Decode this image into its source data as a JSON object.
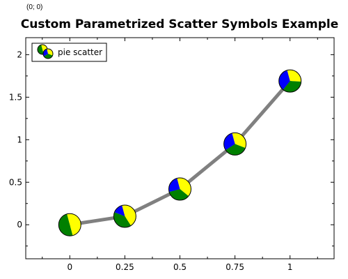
{
  "header": {
    "coordinate_readout": "(0; 0)"
  },
  "colors": {
    "line": "#808080",
    "pie": [
      "#ffff00",
      "#008000",
      "#0000ff"
    ],
    "axis": "#000000",
    "background": "#ffffff"
  },
  "chart_data": {
    "type": "scatter",
    "title": "Custom Parametrized Scatter Symbols Example",
    "xlabel": "",
    "ylabel": "",
    "xlim": [
      -0.2,
      1.2
    ],
    "ylim": [
      -0.4,
      2.2
    ],
    "x_ticks": [
      0,
      0.25,
      0.5,
      0.75,
      1
    ],
    "x_tick_labels": [
      "0",
      "0.25",
      "0.5",
      "0.75",
      "1"
    ],
    "y_ticks": [
      0,
      0.5,
      1,
      1.5,
      2
    ],
    "y_tick_labels": [
      "0",
      "0.5",
      "1",
      "1.5",
      "2"
    ],
    "grid": false,
    "legend": {
      "position": "top-left",
      "entries": [
        "pie scatter"
      ]
    },
    "series": [
      {
        "name": "pie scatter",
        "marker": "pie",
        "line_color": "#808080",
        "x": [
          0,
          0.25,
          0.5,
          0.75,
          1
        ],
        "y": [
          0,
          0.1,
          0.42,
          0.95,
          1.69
        ],
        "pie_fractions": [
          [
            0.5,
            0.5,
            0.0
          ],
          [
            0.45,
            0.4,
            0.15
          ],
          [
            0.4,
            0.35,
            0.25
          ],
          [
            0.35,
            0.35,
            0.3
          ],
          [
            0.3,
            0.35,
            0.35
          ]
        ]
      }
    ]
  }
}
